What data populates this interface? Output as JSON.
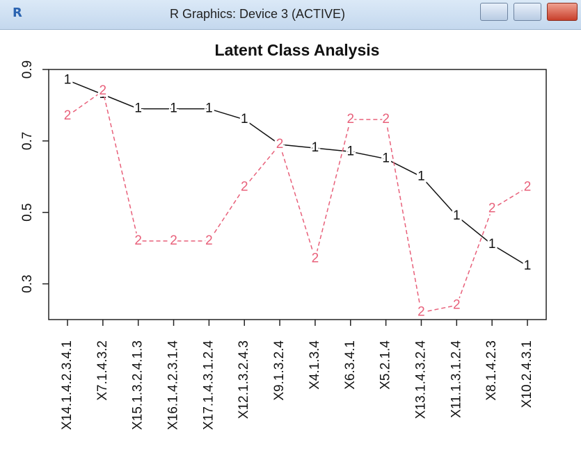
{
  "window": {
    "title": "R Graphics: Device 3 (ACTIVE)"
  },
  "chart_data": {
    "type": "line",
    "title": "Latent Class Analysis",
    "categories": [
      "X14.1.4.2.3.4.1",
      "X7.1.4.3.2",
      "X15.1.3.2.4.1.3",
      "X16.1.4.2.3.1.4",
      "X17.1.4.3.1.2.4",
      "X12.1.3.2.4.3",
      "X9.1.3.2.4",
      "X4.1.3.4",
      "X6.3.4.1",
      "X5.2.1.4",
      "X13.1.4.3.2.4",
      "X11.1.3.1.2.4",
      "X8.1.4.2.3",
      "X10.2.4.3.1"
    ],
    "series": [
      {
        "name": "1",
        "color": "#111111",
        "values": [
          0.87,
          0.83,
          0.79,
          0.79,
          0.79,
          0.76,
          0.69,
          0.68,
          0.67,
          0.65,
          0.6,
          0.49,
          0.41,
          0.35
        ]
      },
      {
        "name": "2",
        "color": "#e8607a",
        "values": [
          0.77,
          0.84,
          0.42,
          0.42,
          0.42,
          0.57,
          0.69,
          0.37,
          0.76,
          0.76,
          0.22,
          0.24,
          0.51,
          0.57
        ]
      }
    ],
    "ylim": [
      0.2,
      0.9
    ],
    "yticks": [
      0.3,
      0.5,
      0.7,
      0.9
    ]
  }
}
